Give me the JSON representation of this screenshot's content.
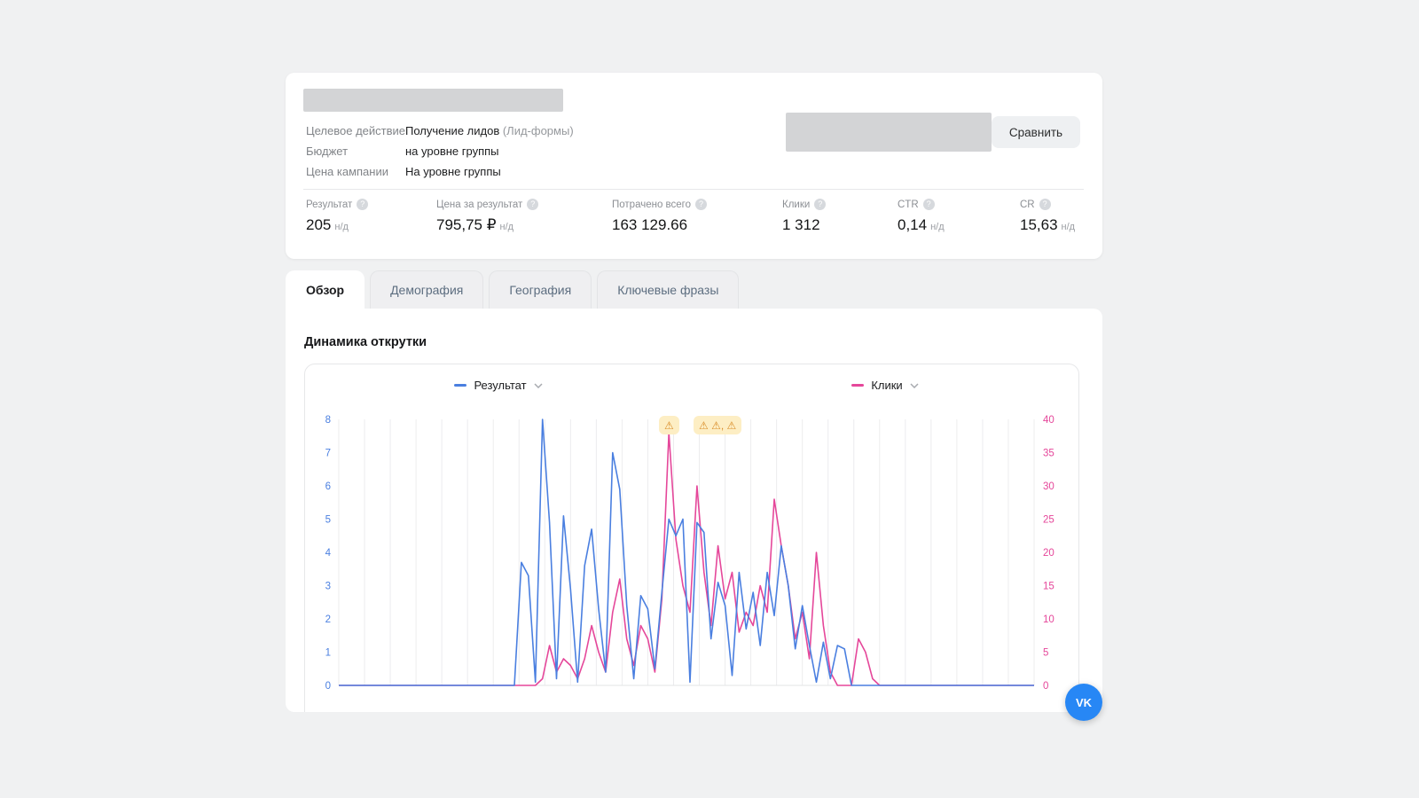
{
  "icons": {
    "help": "?",
    "warning_single": "⚠",
    "warning_group": "⚠ ⚠, ⚠",
    "vk": "VK"
  },
  "header": {
    "fields": [
      {
        "label": "Целевое действие",
        "value": "Получение лидов",
        "suffix": " (Лид-формы)"
      },
      {
        "label": "Бюджет",
        "value": "на уровне группы",
        "suffix": ""
      },
      {
        "label": "Цена кампании",
        "value": "На уровне группы",
        "suffix": ""
      }
    ],
    "compare_button": "Сравнить",
    "metrics": [
      {
        "label": "Результат",
        "value": "205",
        "suffix": "н/д"
      },
      {
        "label": "Цена за результат",
        "value": "795,75 ₽",
        "suffix": "н/д"
      },
      {
        "label": "Потрачено всего",
        "value": "163 129.66",
        "suffix": ""
      },
      {
        "label": "Клики",
        "value": "1 312",
        "suffix": ""
      },
      {
        "label": "CTR",
        "value": "0,14",
        "suffix": "н/д"
      },
      {
        "label": "CR",
        "value": "15,63",
        "suffix": "н/д"
      }
    ]
  },
  "tabs": [
    {
      "label": "Обзор",
      "active": true
    },
    {
      "label": "Демография",
      "active": false
    },
    {
      "label": "География",
      "active": false
    },
    {
      "label": "Ключевые фразы",
      "active": false
    }
  ],
  "section_title": "Динамика открутки",
  "chart_data": {
    "type": "line",
    "title": "Динамика открутки",
    "gridlines": 28,
    "legend_position": "top",
    "left_axis": {
      "label": "Результат",
      "range": [
        0,
        8
      ],
      "ticks": [
        0,
        1,
        2,
        3,
        4,
        5,
        6,
        7,
        8
      ],
      "color": "#4a7fe0"
    },
    "right_axis": {
      "label": "Клики",
      "range": [
        0,
        40
      ],
      "ticks": [
        0,
        5,
        10,
        15,
        20,
        25,
        30,
        35,
        40
      ],
      "color": "#e5479a"
    },
    "legend": [
      {
        "name": "Результат",
        "color": "#4a7fe0"
      },
      {
        "name": "Клики",
        "color": "#e5479a"
      }
    ],
    "series": [
      {
        "name": "Результат",
        "axis": "left",
        "color": "#4a7fe0",
        "values": [
          0,
          0,
          0,
          0,
          0,
          0,
          0,
          0,
          0,
          0,
          0,
          0,
          0,
          0,
          0,
          0,
          0,
          0,
          0,
          0,
          0,
          0,
          0,
          0,
          0,
          0,
          3.7,
          3.3,
          0.1,
          8,
          4.9,
          0.2,
          5.1,
          2.9,
          0.1,
          3.6,
          4.7,
          2.3,
          0.4,
          7,
          5.9,
          2.4,
          0.2,
          2.7,
          2.3,
          0.5,
          2.8,
          5,
          4.5,
          5,
          0.1,
          4.9,
          4.6,
          1.4,
          3.1,
          2.4,
          0.3,
          3.4,
          1.7,
          2.8,
          1.2,
          3.4,
          2.1,
          4.2,
          3,
          1.1,
          2.4,
          1.2,
          0.1,
          1.3,
          0.2,
          1.2,
          1.1,
          0,
          0,
          0,
          0,
          0,
          0,
          0,
          0,
          0,
          0,
          0,
          0,
          0,
          0,
          0,
          0,
          0,
          0,
          0,
          0,
          0,
          0,
          0,
          0,
          0,
          0,
          0
        ]
      },
      {
        "name": "Клики",
        "axis": "right",
        "color": "#e5479a",
        "values": [
          0,
          0,
          0,
          0,
          0,
          0,
          0,
          0,
          0,
          0,
          0,
          0,
          0,
          0,
          0,
          0,
          0,
          0,
          0,
          0,
          0,
          0,
          0,
          0,
          0,
          0,
          0,
          0,
          0,
          1,
          6,
          2,
          4,
          3,
          1,
          4,
          9,
          5,
          2,
          11,
          16,
          7,
          3,
          9,
          7,
          2,
          13,
          38,
          22,
          15,
          11,
          30,
          17,
          9,
          21,
          13,
          17,
          8,
          11,
          9,
          15,
          11,
          28,
          21,
          15,
          7,
          11,
          4,
          20,
          9,
          2,
          0,
          0,
          0,
          7,
          5,
          1,
          0,
          0,
          0,
          0,
          0,
          0,
          0,
          0,
          0,
          0,
          0,
          0,
          0,
          0,
          0,
          0,
          0,
          0,
          0,
          0,
          0,
          0,
          0
        ]
      }
    ]
  }
}
